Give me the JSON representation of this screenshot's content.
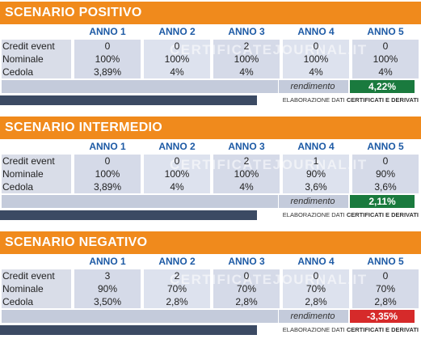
{
  "columns": [
    "ANNO 1",
    "ANNO 2",
    "ANNO 3",
    "ANNO 4",
    "ANNO 5"
  ],
  "row_labels": [
    "Credit event",
    "Nominale",
    "Cedola"
  ],
  "rendimento_label": "rendimento",
  "footer": {
    "prefix": "ELABORAZIONE DATI ",
    "bold": "CERTIFICATI E DERIVATI"
  },
  "watermark": "CERTIFICATEJOURNAL.IT",
  "colors": {
    "orange": "#f08a1c",
    "blue_header": "#1d5aa5",
    "positive": "#1a7a3e",
    "negative": "#d62a2a"
  },
  "scenarios": [
    {
      "title": "SCENARIO POSITIVO",
      "credit_event": [
        "0",
        "0",
        "2",
        "0",
        "0"
      ],
      "nominale": [
        "100%",
        "100%",
        "100%",
        "100%",
        "100%"
      ],
      "cedola": [
        "3,89%",
        "4%",
        "4%",
        "4%",
        "4%"
      ],
      "rendimento": "4,22%",
      "rend_color": "#1a7a3e"
    },
    {
      "title": "SCENARIO INTERMEDIO",
      "credit_event": [
        "0",
        "0",
        "2",
        "1",
        "0"
      ],
      "nominale": [
        "100%",
        "100%",
        "100%",
        "90%",
        "90%"
      ],
      "cedola": [
        "3,89%",
        "4%",
        "4%",
        "3,6%",
        "3,6%"
      ],
      "rendimento": "2,11%",
      "rend_color": "#1a7a3e"
    },
    {
      "title": "SCENARIO NEGATIVO",
      "credit_event": [
        "3",
        "2",
        "0",
        "0",
        "0"
      ],
      "nominale": [
        "90%",
        "70%",
        "70%",
        "70%",
        "70%"
      ],
      "cedola": [
        "3,50%",
        "2,8%",
        "2,8%",
        "2,8%",
        "2,8%"
      ],
      "rendimento": "-3,35%",
      "rend_color": "#d62a2a"
    }
  ]
}
